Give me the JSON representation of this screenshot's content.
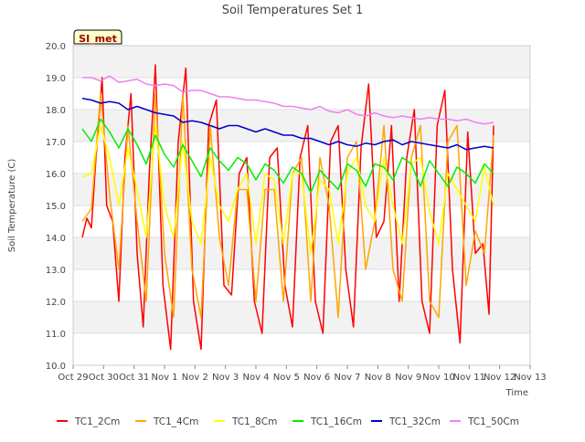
{
  "chart_data": {
    "type": "line",
    "title": "Soil Temperatures Set 1",
    "xlabel": "Time",
    "ylabel": "Soil Temperature (C)",
    "ylim": [
      10.0,
      20.0
    ],
    "yticks": [
      "10.0",
      "11.0",
      "12.0",
      "13.0",
      "14.0",
      "15.0",
      "16.0",
      "17.0",
      "18.0",
      "19.0",
      "20.0"
    ],
    "xlim": [
      "Oct 29",
      "Nov 13"
    ],
    "xticks": [
      "Oct 29",
      "Oct 30",
      "Oct 31",
      "Nov 1",
      "Nov 2",
      "Nov 3",
      "Nov 4",
      "Nov 5",
      "Nov 6",
      "Nov 7",
      "Nov 8",
      "Nov 9",
      "Nov 10",
      "Nov 11",
      "Nov 12",
      "Nov 13"
    ],
    "x_units": "days after Oct 29 00:00",
    "grid": "horizontal bands",
    "legend_position": "bottom",
    "station_label": "SI_met",
    "series": [
      {
        "name": "TC1_2Cm",
        "color": "#ff0000",
        "x": [
          0.3,
          0.45,
          0.6,
          0.75,
          0.95,
          1.1,
          1.3,
          1.5,
          1.7,
          1.9,
          2.1,
          2.3,
          2.5,
          2.7,
          2.95,
          3.2,
          3.45,
          3.7,
          3.95,
          4.2,
          4.45,
          4.7,
          4.95,
          5.2,
          5.45,
          5.7,
          5.95,
          6.2,
          6.45,
          6.7,
          6.95,
          7.2,
          7.45,
          7.7,
          7.95,
          8.2,
          8.45,
          8.7,
          8.95,
          9.2,
          9.45,
          9.7,
          9.95,
          10.2,
          10.45,
          10.7,
          10.95,
          11.2,
          11.45,
          11.7,
          11.95,
          12.2,
          12.45,
          12.7,
          12.95,
          13.2,
          13.45,
          13.65,
          13.8
        ],
        "values": [
          14.0,
          14.6,
          14.3,
          16.5,
          19.0,
          15.0,
          14.5,
          12.0,
          16.5,
          18.5,
          13.5,
          11.2,
          16.0,
          19.4,
          12.5,
          10.5,
          17.0,
          19.3,
          12.0,
          10.5,
          17.5,
          18.3,
          12.5,
          12.2,
          16.0,
          16.5,
          12.0,
          11.0,
          16.5,
          16.8,
          12.5,
          11.2,
          16.5,
          17.5,
          12.0,
          11.0,
          17.0,
          17.5,
          13.0,
          11.2,
          16.8,
          18.8,
          14.0,
          14.5,
          17.5,
          12.0,
          16.5,
          18.0,
          12.0,
          11.0,
          17.5,
          18.6,
          13.0,
          10.7,
          17.3,
          13.5,
          13.8,
          11.6,
          17.5
        ]
      },
      {
        "name": "TC1_4Cm",
        "color": "#ffa500",
        "x": [
          0.3,
          0.6,
          0.9,
          1.2,
          1.5,
          1.8,
          2.1,
          2.4,
          2.7,
          3.0,
          3.3,
          3.6,
          3.9,
          4.2,
          4.5,
          4.8,
          5.1,
          5.4,
          5.7,
          6.0,
          6.3,
          6.6,
          6.9,
          7.2,
          7.5,
          7.8,
          8.1,
          8.4,
          8.7,
          9.0,
          9.3,
          9.6,
          9.9,
          10.2,
          10.5,
          10.8,
          11.1,
          11.4,
          11.7,
          12.0,
          12.3,
          12.6,
          12.9,
          13.2,
          13.5,
          13.8
        ],
        "values": [
          14.5,
          14.9,
          18.5,
          15.3,
          13.0,
          17.5,
          14.5,
          12.0,
          18.5,
          13.5,
          11.5,
          18.5,
          13.0,
          11.5,
          17.5,
          14.0,
          12.5,
          15.5,
          15.5,
          12.0,
          15.5,
          15.5,
          12.0,
          16.0,
          16.5,
          12.0,
          16.5,
          15.0,
          11.5,
          16.5,
          17.0,
          13.0,
          14.5,
          17.5,
          13.0,
          12.0,
          16.5,
          17.5,
          12.0,
          11.5,
          17.0,
          17.5,
          12.5,
          14.2,
          13.5,
          17.2
        ]
      },
      {
        "name": "TC1_8Cm",
        "color": "#ffff00",
        "x": [
          0.3,
          0.6,
          0.9,
          1.2,
          1.5,
          1.8,
          2.1,
          2.4,
          2.7,
          3.0,
          3.3,
          3.6,
          3.9,
          4.2,
          4.5,
          4.8,
          5.1,
          5.4,
          5.7,
          6.0,
          6.3,
          6.6,
          6.9,
          7.2,
          7.5,
          7.8,
          8.1,
          8.4,
          8.7,
          9.0,
          9.3,
          9.6,
          9.9,
          10.2,
          10.5,
          10.8,
          11.1,
          11.4,
          11.7,
          12.0,
          12.3,
          12.6,
          12.9,
          13.2,
          13.5,
          13.8
        ],
        "values": [
          15.9,
          16.0,
          17.5,
          16.5,
          15.0,
          16.8,
          15.5,
          14.0,
          17.5,
          15.0,
          14.0,
          17.0,
          14.5,
          13.8,
          16.5,
          15.0,
          14.5,
          15.5,
          16.0,
          13.8,
          16.0,
          15.8,
          13.8,
          16.0,
          16.0,
          13.5,
          15.8,
          15.5,
          13.8,
          16.0,
          16.5,
          15.0,
          14.5,
          16.5,
          15.0,
          13.8,
          16.3,
          16.5,
          14.8,
          13.8,
          16.0,
          15.5,
          15.0,
          14.5,
          16.2,
          15.0
        ]
      },
      {
        "name": "TC1_16Cm",
        "color": "#00ee00",
        "x": [
          0.3,
          0.6,
          0.9,
          1.2,
          1.5,
          1.8,
          2.1,
          2.4,
          2.7,
          3.0,
          3.3,
          3.6,
          3.9,
          4.2,
          4.5,
          4.8,
          5.1,
          5.4,
          5.7,
          6.0,
          6.3,
          6.6,
          6.9,
          7.2,
          7.5,
          7.8,
          8.1,
          8.4,
          8.7,
          9.0,
          9.3,
          9.6,
          9.9,
          10.2,
          10.5,
          10.8,
          11.1,
          11.4,
          11.7,
          12.0,
          12.3,
          12.6,
          12.9,
          13.2,
          13.5,
          13.8
        ],
        "values": [
          17.4,
          17.0,
          17.7,
          17.3,
          16.8,
          17.4,
          16.9,
          16.3,
          17.2,
          16.6,
          16.2,
          16.9,
          16.4,
          15.9,
          16.8,
          16.4,
          16.1,
          16.5,
          16.3,
          15.8,
          16.3,
          16.1,
          15.7,
          16.2,
          16.0,
          15.4,
          16.1,
          15.8,
          15.5,
          16.3,
          16.1,
          15.6,
          16.3,
          16.2,
          15.8,
          16.5,
          16.3,
          15.6,
          16.4,
          16.0,
          15.6,
          16.2,
          16.0,
          15.7,
          16.3,
          16.0
        ]
      },
      {
        "name": "TC1_32Cm",
        "color": "#0000cc",
        "x": [
          0.3,
          0.6,
          0.9,
          1.2,
          1.5,
          1.8,
          2.1,
          2.4,
          2.7,
          3.0,
          3.3,
          3.6,
          3.9,
          4.2,
          4.5,
          4.8,
          5.1,
          5.4,
          5.7,
          6.0,
          6.3,
          6.6,
          6.9,
          7.2,
          7.5,
          7.8,
          8.1,
          8.4,
          8.7,
          9.0,
          9.3,
          9.6,
          9.9,
          10.2,
          10.5,
          10.8,
          11.1,
          11.4,
          11.7,
          12.0,
          12.3,
          12.6,
          12.9,
          13.2,
          13.5,
          13.8
        ],
        "values": [
          18.35,
          18.3,
          18.2,
          18.25,
          18.2,
          18.0,
          18.1,
          18.0,
          17.9,
          17.85,
          17.8,
          17.6,
          17.65,
          17.6,
          17.5,
          17.4,
          17.5,
          17.5,
          17.4,
          17.3,
          17.4,
          17.3,
          17.2,
          17.2,
          17.1,
          17.1,
          17.0,
          16.9,
          17.0,
          16.9,
          16.85,
          16.95,
          16.9,
          17.0,
          17.05,
          16.9,
          17.0,
          16.95,
          16.9,
          16.85,
          16.8,
          16.9,
          16.75,
          16.8,
          16.85,
          16.8
        ]
      },
      {
        "name": "TC1_50Cm",
        "color": "#ee82ee",
        "x": [
          0.3,
          0.6,
          0.9,
          1.2,
          1.5,
          1.8,
          2.1,
          2.4,
          2.7,
          3.0,
          3.3,
          3.6,
          3.9,
          4.2,
          4.5,
          4.8,
          5.1,
          5.4,
          5.7,
          6.0,
          6.3,
          6.6,
          6.9,
          7.2,
          7.5,
          7.8,
          8.1,
          8.4,
          8.7,
          9.0,
          9.3,
          9.6,
          9.9,
          10.2,
          10.5,
          10.8,
          11.1,
          11.4,
          11.7,
          12.0,
          12.3,
          12.6,
          12.9,
          13.2,
          13.5,
          13.8
        ],
        "values": [
          19.0,
          19.0,
          18.9,
          19.05,
          18.85,
          18.9,
          18.95,
          18.8,
          18.75,
          18.8,
          18.75,
          18.55,
          18.6,
          18.6,
          18.5,
          18.4,
          18.4,
          18.35,
          18.3,
          18.3,
          18.25,
          18.2,
          18.1,
          18.1,
          18.05,
          18.0,
          18.1,
          17.95,
          17.9,
          18.0,
          17.85,
          17.8,
          17.9,
          17.8,
          17.75,
          17.8,
          17.75,
          17.7,
          17.75,
          17.7,
          17.7,
          17.65,
          17.7,
          17.6,
          17.55,
          17.6
        ]
      }
    ]
  }
}
